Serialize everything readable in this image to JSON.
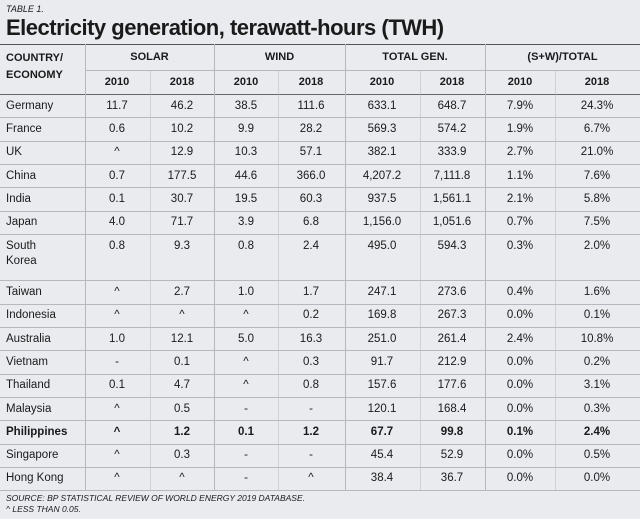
{
  "header": {
    "label": "TABLE 1.",
    "title": "Electricity generation, terawatt-hours (TWH)"
  },
  "table": {
    "corner": [
      "COUNTRY/",
      "ECONOMY"
    ],
    "groups": [
      "SOLAR",
      "WIND",
      "TOTAL GEN.",
      "(S+W)/TOTAL"
    ],
    "years": [
      "2010",
      "2018",
      "2010",
      "2018",
      "2010",
      "2018",
      "2010",
      "2018"
    ],
    "rows": [
      {
        "name": [
          "Germany"
        ],
        "values": [
          "11.7",
          "46.2",
          "38.5",
          "111.6",
          "633.1",
          "648.7",
          "7.9%",
          "24.3%"
        ]
      },
      {
        "name": [
          "France"
        ],
        "values": [
          "0.6",
          "10.2",
          "9.9",
          "28.2",
          "569.3",
          "574.2",
          "1.9%",
          "6.7%"
        ]
      },
      {
        "name": [
          "UK"
        ],
        "values": [
          "^",
          "12.9",
          "10.3",
          "57.1",
          "382.1",
          "333.9",
          "2.7%",
          "21.0%"
        ]
      },
      {
        "name": [
          "China"
        ],
        "values": [
          "0.7",
          "177.5",
          "44.6",
          "366.0",
          "4,207.2",
          "7,111.8",
          "1.1%",
          "7.6%"
        ]
      },
      {
        "name": [
          "India"
        ],
        "values": [
          "0.1",
          "30.7",
          "19.5",
          "60.3",
          "937.5",
          "1,561.1",
          "2.1%",
          "5.8%"
        ]
      },
      {
        "name": [
          "Japan"
        ],
        "values": [
          "4.0",
          "71.7",
          "3.9",
          "6.8",
          "1,156.0",
          "1,051.6",
          "0.7%",
          "7.5%"
        ]
      },
      {
        "name": [
          "South",
          "Korea"
        ],
        "values": [
          "0.8",
          "9.3",
          "0.8",
          "2.4",
          "495.0",
          "594.3",
          "0.3%",
          "2.0%"
        ]
      },
      {
        "name": [
          "Taiwan"
        ],
        "values": [
          "^",
          "2.7",
          "1.0",
          "1.7",
          "247.1",
          "273.6",
          "0.4%",
          "1.6%"
        ]
      },
      {
        "name": [
          "Indonesia"
        ],
        "values": [
          "^",
          "^",
          "^",
          "0.2",
          "169.8",
          "267.3",
          "0.0%",
          "0.1%"
        ]
      },
      {
        "name": [
          "Australia"
        ],
        "values": [
          "1.0",
          "12.1",
          "5.0",
          "16.3",
          "251.0",
          "261.4",
          "2.4%",
          "10.8%"
        ]
      },
      {
        "name": [
          "Vietnam"
        ],
        "values": [
          "-",
          "0.1",
          "^",
          "0.3",
          "91.7",
          "212.9",
          "0.0%",
          "0.2%"
        ]
      },
      {
        "name": [
          "Thailand"
        ],
        "values": [
          "0.1",
          "4.7",
          "^",
          "0.8",
          "157.6",
          "177.6",
          "0.0%",
          "3.1%"
        ]
      },
      {
        "name": [
          "Malaysia"
        ],
        "values": [
          "^",
          "0.5",
          "-",
          "-",
          "120.1",
          "168.4",
          "0.0%",
          "0.3%"
        ]
      },
      {
        "name": [
          "Philippines"
        ],
        "values": [
          "^",
          "1.2",
          "0.1",
          "1.2",
          "67.7",
          "99.8",
          "0.1%",
          "2.4%"
        ],
        "bold": true
      },
      {
        "name": [
          "Singapore"
        ],
        "values": [
          "^",
          "0.3",
          "-",
          "-",
          "45.4",
          "52.9",
          "0.0%",
          "0.5%"
        ]
      },
      {
        "name": [
          "Hong Kong"
        ],
        "values": [
          "^",
          "^",
          "-",
          "^",
          "38.4",
          "36.7",
          "0.0%",
          "0.0%"
        ]
      }
    ]
  },
  "footnotes": [
    "SOURCE: BP STATISTICAL REVIEW OF WORLD ENERGY 2019 DATABASE.",
    "^ LESS THAN 0.05."
  ]
}
